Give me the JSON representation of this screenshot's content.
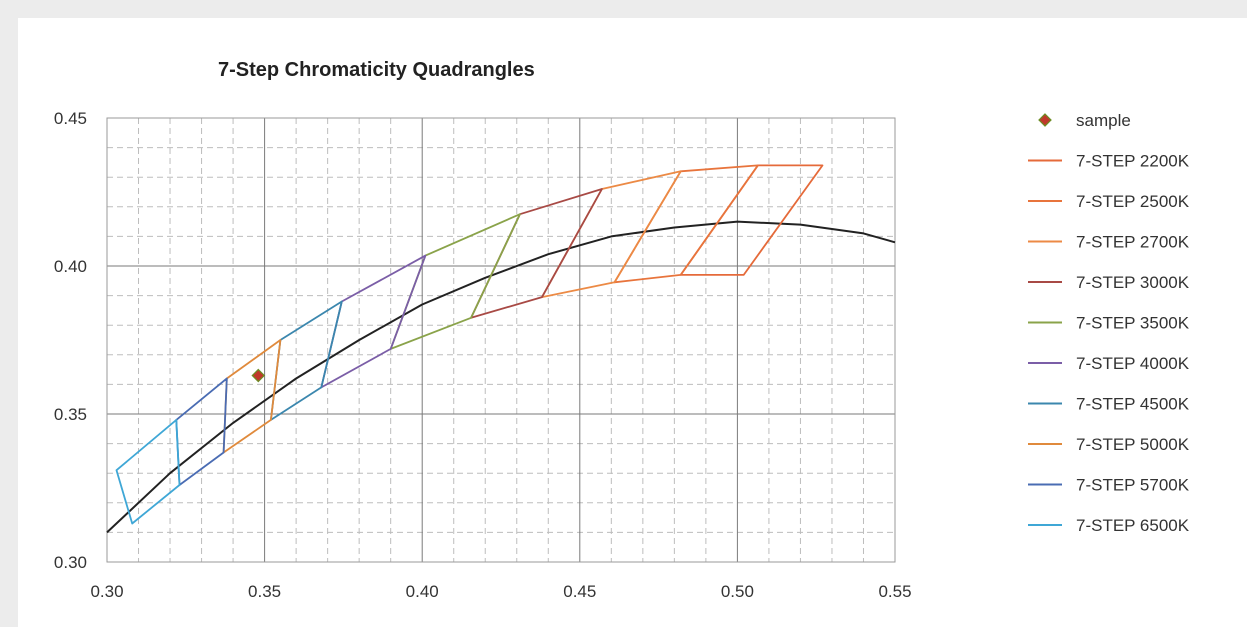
{
  "chart_data": {
    "type": "line",
    "title": "7-Step Chromaticity Quadrangles",
    "xlabel": "",
    "ylabel": "",
    "xlim": [
      0.3,
      0.55
    ],
    "ylim": [
      0.3,
      0.45
    ],
    "x_ticks": [
      "0.30",
      "0.35",
      "0.40",
      "0.45",
      "0.50",
      "0.55"
    ],
    "y_ticks": [
      "0.30",
      "0.35",
      "0.40",
      "0.45"
    ],
    "grid": true,
    "legend_position": "right",
    "planckian_locus": {
      "color": "#222222",
      "points": [
        [
          0.3,
          0.31
        ],
        [
          0.32,
          0.33
        ],
        [
          0.34,
          0.347
        ],
        [
          0.36,
          0.362
        ],
        [
          0.38,
          0.375
        ],
        [
          0.4,
          0.387
        ],
        [
          0.42,
          0.396
        ],
        [
          0.44,
          0.404
        ],
        [
          0.46,
          0.41
        ],
        [
          0.48,
          0.413
        ],
        [
          0.5,
          0.415
        ],
        [
          0.52,
          0.414
        ],
        [
          0.54,
          0.411
        ],
        [
          0.55,
          0.408
        ]
      ]
    },
    "series": [
      {
        "name": "sample",
        "kind": "marker",
        "color": "#c0392b",
        "points": [
          [
            0.348,
            0.363
          ]
        ]
      },
      {
        "name": "7-STEP 2200K",
        "kind": "quad",
        "color": "#e56a3a",
        "points": [
          [
            0.5065,
            0.434
          ],
          [
            0.527,
            0.434
          ],
          [
            0.502,
            0.397
          ],
          [
            0.482,
            0.397
          ]
        ]
      },
      {
        "name": "7-STEP 2500K",
        "kind": "quad",
        "color": "#e8743c",
        "points": [
          [
            0.482,
            0.432
          ],
          [
            0.5065,
            0.434
          ],
          [
            0.482,
            0.397
          ],
          [
            0.461,
            0.3945
          ]
        ]
      },
      {
        "name": "7-STEP 2700K",
        "kind": "quad",
        "color": "#ec8a45",
        "points": [
          [
            0.457,
            0.426
          ],
          [
            0.482,
            0.432
          ],
          [
            0.461,
            0.3945
          ],
          [
            0.438,
            0.3895
          ]
        ]
      },
      {
        "name": "7-STEP 3000K",
        "kind": "quad",
        "color": "#a84a45",
        "points": [
          [
            0.431,
            0.4175
          ],
          [
            0.457,
            0.426
          ],
          [
            0.438,
            0.3895
          ],
          [
            0.4155,
            0.3825
          ]
        ]
      },
      {
        "name": "7-STEP 3500K",
        "kind": "quad",
        "color": "#8aa34a",
        "points": [
          [
            0.401,
            0.4035
          ],
          [
            0.431,
            0.4175
          ],
          [
            0.4155,
            0.3825
          ],
          [
            0.39,
            0.372
          ]
        ]
      },
      {
        "name": "7-STEP 4000K",
        "kind": "quad",
        "color": "#7b5ea7",
        "points": [
          [
            0.3745,
            0.388
          ],
          [
            0.401,
            0.4035
          ],
          [
            0.39,
            0.372
          ],
          [
            0.368,
            0.359
          ]
        ]
      },
      {
        "name": "7-STEP 4500K",
        "kind": "quad",
        "color": "#3b87ae",
        "points": [
          [
            0.355,
            0.375
          ],
          [
            0.3745,
            0.388
          ],
          [
            0.368,
            0.359
          ],
          [
            0.352,
            0.348
          ]
        ]
      },
      {
        "name": "7-STEP 5000K",
        "kind": "quad",
        "color": "#e08a3c",
        "points": [
          [
            0.338,
            0.362
          ],
          [
            0.355,
            0.375
          ],
          [
            0.352,
            0.348
          ],
          [
            0.337,
            0.337
          ]
        ]
      },
      {
        "name": "7-STEP 5700K",
        "kind": "quad",
        "color": "#4a6cb3",
        "points": [
          [
            0.322,
            0.348
          ],
          [
            0.338,
            0.362
          ],
          [
            0.337,
            0.337
          ],
          [
            0.323,
            0.326
          ]
        ]
      },
      {
        "name": "7-STEP 6500K",
        "kind": "quad",
        "color": "#3fa7d6",
        "points": [
          [
            0.303,
            0.331
          ],
          [
            0.322,
            0.348
          ],
          [
            0.323,
            0.326
          ],
          [
            0.308,
            0.313
          ]
        ]
      }
    ]
  }
}
